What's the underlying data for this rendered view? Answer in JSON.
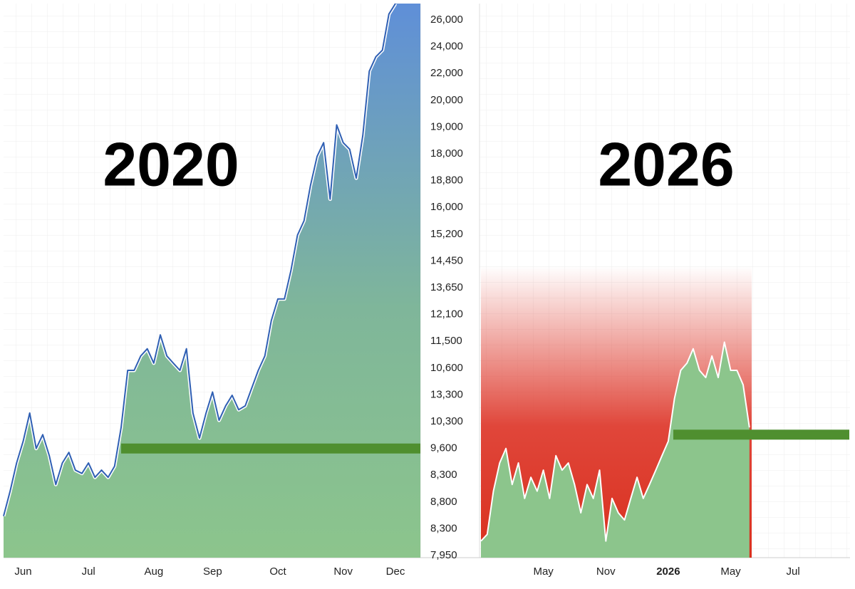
{
  "y_axis_labels": [
    "26,000",
    "24,000",
    "22,000",
    "20,000",
    "19,000",
    "18,000",
    "18,800",
    "16,000",
    "15,200",
    "14,450",
    "13,650",
    "12,100",
    "11,500",
    "10,600",
    "13,300",
    "10,300",
    "9,600",
    "8,300",
    "8,800",
    "8,300",
    "7,950"
  ],
  "chart_data": [
    {
      "type": "area",
      "title": "2020",
      "ylim": [
        0,
        100
      ],
      "reference_line": 19.7,
      "line_color": "#2f5fb3",
      "categories": [
        null,
        null,
        null,
        "Jun",
        null,
        null,
        null,
        null,
        null,
        null,
        null,
        null,
        null,
        "Jul",
        null,
        null,
        null,
        null,
        null,
        null,
        null,
        null,
        null,
        "Aug",
        null,
        null,
        null,
        null,
        null,
        null,
        null,
        null,
        "Sep",
        null,
        null,
        null,
        null,
        null,
        null,
        null,
        null,
        null,
        "Oct",
        null,
        null,
        null,
        null,
        null,
        null,
        null,
        null,
        null,
        "Nov",
        null,
        null,
        null,
        null,
        null,
        null,
        null,
        "Dec"
      ],
      "values": [
        7.5,
        12.0,
        17.1,
        21.0,
        26.1,
        19.7,
        22.2,
        18.4,
        13.2,
        17.1,
        19.0,
        15.8,
        15.2,
        17.1,
        14.5,
        15.8,
        14.5,
        16.5,
        23.5,
        33.8,
        33.8,
        36.4,
        37.7,
        35.1,
        40.2,
        36.4,
        35.1,
        33.8,
        37.7,
        26.1,
        21.6,
        26.1,
        29.9,
        24.8,
        27.4,
        29.3,
        26.7,
        27.4,
        30.6,
        33.8,
        36.4,
        42.8,
        46.7,
        46.7,
        51.8,
        58.2,
        60.8,
        67.2,
        72.4,
        74.9,
        64.7,
        78.1,
        74.9,
        73.7,
        68.5,
        76.2,
        87.8,
        90.4,
        91.6,
        98.1,
        100
      ]
    },
    {
      "type": "area",
      "title": "2026",
      "ylim": [
        0,
        100
      ],
      "reference_line": 22.2,
      "red_zone_top": 52.7,
      "line_color": "#ffffff",
      "categories": [
        null,
        null,
        null,
        null,
        null,
        null,
        null,
        null,
        null,
        null,
        "May",
        null,
        null,
        null,
        null,
        null,
        null,
        null,
        null,
        null,
        "Nov",
        null,
        null,
        null,
        null,
        null,
        null,
        null,
        null,
        null,
        "2026",
        null,
        null,
        null,
        null,
        null,
        null,
        null,
        null,
        null,
        "May",
        null,
        null,
        null,
        null,
        null,
        null,
        null,
        null,
        null,
        "Jul",
        null,
        null,
        null,
        null,
        null,
        null,
        null,
        null,
        null
      ],
      "values": [
        3.0,
        4.2,
        12.0,
        17.1,
        19.7,
        13.2,
        17.1,
        10.7,
        14.5,
        12.0,
        15.8,
        10.7,
        18.4,
        15.8,
        17.1,
        13.2,
        8.1,
        13.2,
        10.7,
        15.8,
        3.0,
        10.7,
        8.1,
        6.8,
        10.7,
        14.5,
        10.7,
        13.2,
        15.8,
        18.4,
        21.0,
        28.7,
        33.8,
        35.1,
        37.7,
        33.8,
        32.5,
        36.4,
        32.5,
        38.9,
        33.8,
        33.8,
        31.2,
        23.5,
        null,
        null,
        null,
        null,
        null,
        null,
        null,
        null,
        null,
        null,
        null,
        null,
        null,
        null,
        null,
        null
      ]
    }
  ]
}
